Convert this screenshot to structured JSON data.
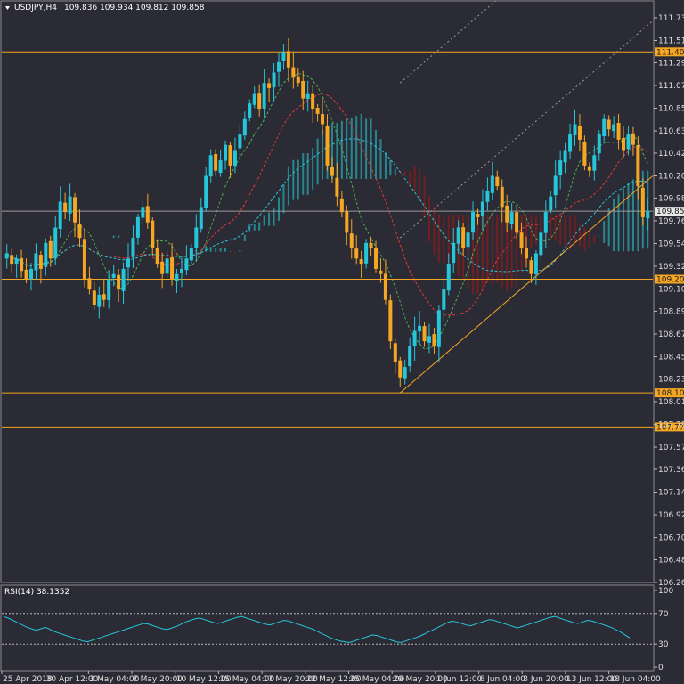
{
  "chart_header": {
    "symbol": "USDJPY,H4",
    "ohlc": "109.836 109.934 109.812 109.858"
  },
  "rsi_header": {
    "label": "RSI(14) 38.1352"
  },
  "colors": {
    "background": "#2b2b35",
    "bull": "#26c6da",
    "bear": "#f5a623",
    "cloud_bull": "#26a6b0",
    "cloud_bear": "#8b1a1a",
    "level": "#f5a623",
    "price_marker_bg": "#e8e8e8",
    "rsi_line": "#26c6da",
    "ma_green": "#4caf50",
    "ma_red": "#e53935",
    "ma_cyan": "#26c6da",
    "channel": "#9a9a9a"
  },
  "chart_data": [
    {
      "type": "candlestick",
      "symbol": "USDJPY",
      "timeframe": "H4",
      "ylim": [
        106.265,
        111.73
      ],
      "y_ticks": [
        "111.730",
        "111.510",
        "111.295",
        "111.075",
        "110.855",
        "110.635",
        "110.420",
        "110.200",
        "109.985",
        "109.765",
        "109.545",
        "109.325",
        "109.105",
        "108.890",
        "108.670",
        "108.450",
        "108.235",
        "108.015",
        "107.795",
        "107.575",
        "107.360",
        "107.140",
        "106.920",
        "106.700",
        "106.485",
        "106.265"
      ],
      "x_ticks": [
        "25 Apr 2018",
        "30 Apr 12:00",
        "3 May 04:00",
        "7 May 20:00",
        "10 May 12:00",
        "15 May 04:00",
        "17 May 20:00",
        "22 May 12:00",
        "25 May 04:00",
        "29 May 20:00",
        "1 Jun 12:00",
        "6 Jun 04:00",
        "8 Jun 20:00",
        "13 Jun 12:00",
        "18 Jun 04:00"
      ],
      "current_price": 109.858,
      "current_price_label": "109.858",
      "horizontal_levels": [
        {
          "value": 111.4,
          "label": "111.400"
        },
        {
          "value": 109.2,
          "label": "109.200"
        },
        {
          "value": 108.1,
          "label": "108.100"
        },
        {
          "value": 107.77,
          "label": "107.770"
        }
      ],
      "close_path": [
        109.45,
        109.35,
        109.4,
        109.28,
        109.2,
        109.3,
        109.45,
        109.3,
        109.55,
        109.4,
        109.7,
        109.95,
        109.85,
        110.0,
        109.75,
        109.6,
        109.2,
        109.1,
        108.95,
        109.05,
        109.0,
        109.2,
        109.25,
        109.1,
        109.3,
        109.4,
        109.6,
        109.8,
        109.9,
        109.75,
        109.5,
        109.35,
        109.25,
        109.4,
        109.2,
        109.25,
        109.3,
        109.4,
        109.5,
        109.7,
        109.9,
        110.2,
        110.4,
        110.25,
        110.35,
        110.5,
        110.3,
        110.45,
        110.6,
        110.75,
        110.9,
        111.0,
        110.85,
        111.1,
        111.05,
        111.2,
        111.3,
        111.4,
        111.25,
        111.15,
        111.1,
        110.95,
        111.0,
        110.85,
        110.8,
        110.7,
        110.3,
        110.2,
        110.0,
        109.85,
        109.65,
        109.5,
        109.4,
        109.35,
        109.55,
        109.5,
        109.3,
        109.25,
        109.0,
        108.6,
        108.4,
        108.25,
        108.35,
        108.55,
        108.7,
        108.75,
        108.6,
        108.65,
        108.55,
        108.9,
        109.1,
        109.35,
        109.55,
        109.7,
        109.5,
        109.65,
        109.85,
        109.8,
        109.95,
        110.05,
        110.2,
        110.1,
        109.9,
        109.75,
        109.85,
        109.65,
        109.5,
        109.4,
        109.25,
        109.45,
        109.65,
        109.85,
        110.0,
        110.2,
        110.35,
        110.45,
        110.6,
        110.7,
        110.55,
        110.3,
        110.25,
        110.4,
        110.6,
        110.75,
        110.65,
        110.7,
        110.55,
        110.45,
        110.6,
        110.5,
        110.1,
        109.8,
        109.86
      ]
    },
    {
      "type": "line",
      "name": "RSI(14)",
      "ylim": [
        0,
        100
      ],
      "y_ticks": [
        "100",
        "70",
        "30",
        "0"
      ],
      "levels": [
        70,
        30
      ],
      "last_value": 38.1352,
      "values": [
        66,
        64,
        61,
        58,
        55,
        52,
        50,
        48,
        50,
        52,
        49,
        46,
        44,
        42,
        40,
        38,
        36,
        34,
        33,
        35,
        37,
        39,
        41,
        43,
        45,
        47,
        49,
        51,
        53,
        55,
        57,
        56,
        54,
        52,
        50,
        49,
        51,
        53,
        56,
        59,
        61,
        63,
        64,
        62,
        60,
        58,
        57,
        59,
        61,
        63,
        65,
        66,
        64,
        62,
        60,
        58,
        56,
        55,
        57,
        59,
        61,
        60,
        58,
        56,
        54,
        52,
        50,
        47,
        44,
        41,
        38,
        36,
        34,
        33,
        32,
        34,
        36,
        38,
        40,
        42,
        41,
        39,
        37,
        35,
        33,
        32,
        34,
        36,
        38,
        40,
        43,
        46,
        49,
        52,
        55,
        58,
        60,
        59,
        57,
        55,
        54,
        56,
        58,
        60,
        62,
        61,
        59,
        57,
        55,
        53,
        51,
        53,
        55,
        57,
        59,
        61,
        63,
        65,
        66,
        64,
        62,
        60,
        58,
        57,
        59,
        61,
        60,
        58,
        56,
        54,
        52,
        49,
        46,
        42,
        38
      ]
    }
  ]
}
